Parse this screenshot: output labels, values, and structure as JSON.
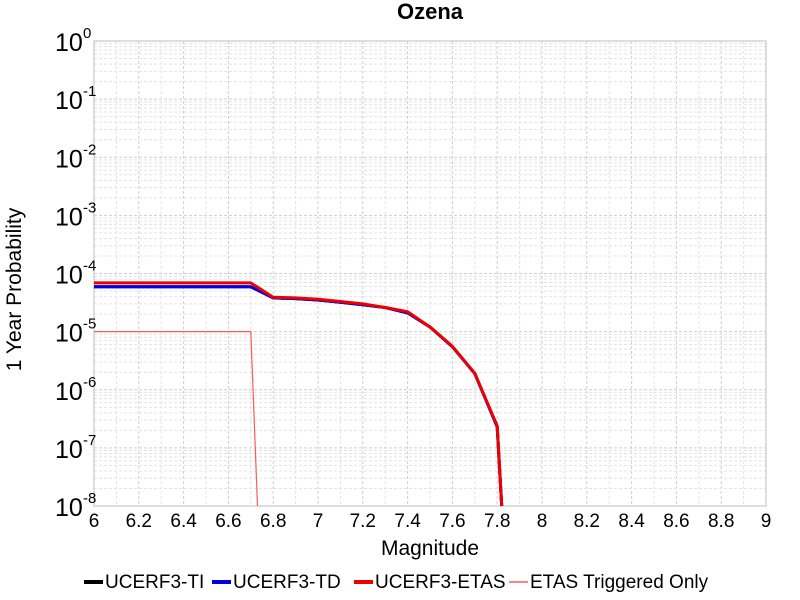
{
  "chart_data": {
    "type": "line",
    "title": "Ozena",
    "xlabel": "Magnitude",
    "ylabel": "1 Year Probability",
    "xlim": [
      6,
      9
    ],
    "ylim": [
      1e-08,
      1
    ],
    "yscale": "log",
    "grid": true,
    "legend_position": "bottom",
    "xticks": [
      "6",
      "6.2",
      "6.4",
      "6.6",
      "6.8",
      "7",
      "7.2",
      "7.4",
      "7.6",
      "7.8",
      "8",
      "8.2",
      "8.4",
      "8.6",
      "8.8",
      "9"
    ],
    "ytick_base": "10",
    "yticks": [
      {
        "value": 1,
        "exp": "0"
      },
      {
        "value": 0.1,
        "exp": "-1"
      },
      {
        "value": 0.01,
        "exp": "-2"
      },
      {
        "value": 0.001,
        "exp": "-3"
      },
      {
        "value": 0.0001,
        "exp": "-4"
      },
      {
        "value": 1e-05,
        "exp": "-5"
      },
      {
        "value": 1e-06,
        "exp": "-6"
      },
      {
        "value": 1e-07,
        "exp": "-7"
      },
      {
        "value": 1e-08,
        "exp": "-8"
      }
    ],
    "series": [
      {
        "name": "UCERF3-TI",
        "color": "#000000",
        "width": 3,
        "x": [
          6.0,
          6.7,
          6.8,
          6.9,
          7.0,
          7.1,
          7.2,
          7.3,
          7.4,
          7.5,
          7.6,
          7.7,
          7.8,
          7.82
        ],
        "y": [
          5.9e-05,
          5.9e-05,
          3.8e-05,
          3.7e-05,
          3.5e-05,
          3.2e-05,
          2.9e-05,
          2.6e-05,
          2.1e-05,
          1.2e-05,
          5.5e-06,
          1.9e-06,
          2.3e-07,
          1e-08
        ]
      },
      {
        "name": "UCERF3-TD",
        "color": "#0000e0",
        "width": 3,
        "x": [
          6.0,
          6.7,
          6.8,
          6.9,
          7.0,
          7.1,
          7.2,
          7.3,
          7.4,
          7.5,
          7.6,
          7.7,
          7.8,
          7.82
        ],
        "y": [
          5.9e-05,
          5.9e-05,
          3.8e-05,
          3.7e-05,
          3.5e-05,
          3.2e-05,
          2.9e-05,
          2.6e-05,
          2.1e-05,
          1.2e-05,
          5.5e-06,
          1.9e-06,
          2.3e-07,
          1e-08
        ]
      },
      {
        "name": "UCERF3-ETAS",
        "color": "#ee0000",
        "width": 3,
        "x": [
          6.0,
          6.7,
          6.8,
          6.9,
          7.0,
          7.1,
          7.2,
          7.3,
          7.4,
          7.5,
          7.6,
          7.7,
          7.8,
          7.82
        ],
        "y": [
          6.9e-05,
          6.9e-05,
          3.9e-05,
          3.8e-05,
          3.6e-05,
          3.3e-05,
          3e-05,
          2.6e-05,
          2.2e-05,
          1.2e-05,
          5.6e-06,
          1.9e-06,
          2.4e-07,
          1e-08
        ]
      },
      {
        "name": "ETAS Triggered Only",
        "color": "#ff5a5a",
        "width": 1.2,
        "x": [
          6.0,
          6.7,
          6.73
        ],
        "y": [
          1e-05,
          1e-05,
          1e-08
        ]
      }
    ]
  }
}
